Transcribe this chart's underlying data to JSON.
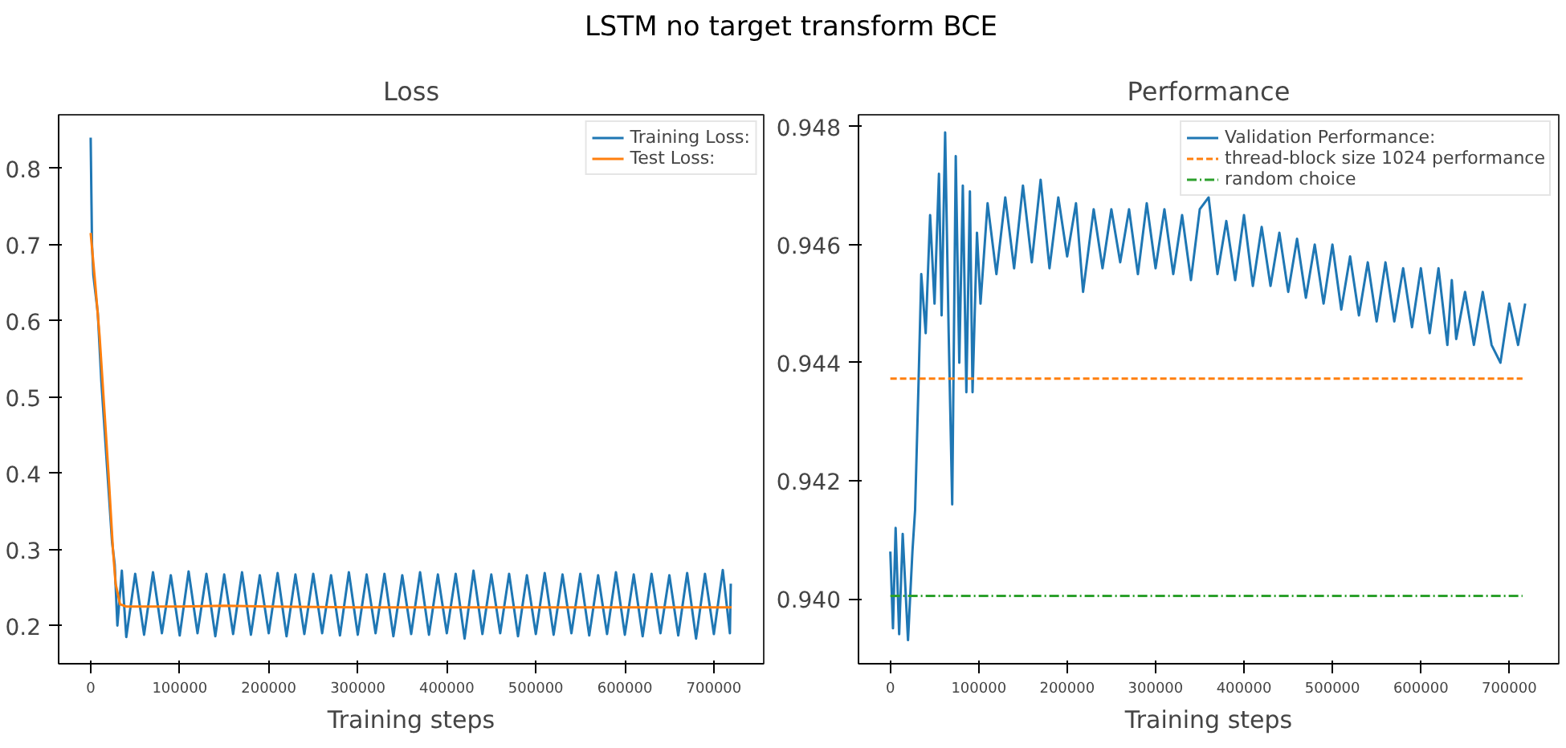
{
  "chart_data": [
    {
      "type": "line",
      "title": "Loss",
      "xlabel": "Training steps",
      "xlim": [
        -36000,
        756000
      ],
      "ylim": [
        0.15,
        0.87
      ],
      "xticks": [
        0,
        100000,
        200000,
        300000,
        400000,
        500000,
        600000,
        700000
      ],
      "yticks": [
        0.2,
        0.3,
        0.4,
        0.5,
        0.6,
        0.7,
        0.8
      ],
      "grid": false,
      "legend": "top right",
      "annotations": [
        "LSTM no target transform BCE"
      ],
      "series": [
        {
          "name": "Training Loss:",
          "color": "#1f77b4",
          "x": [
            0,
            1500,
            3000,
            8000,
            12000,
            16000,
            20000,
            24000,
            27000,
            30000,
            35000,
            40000,
            50000,
            60000,
            70000,
            80000,
            90000,
            100000,
            110000,
            120000,
            130000,
            140000,
            150000,
            160000,
            170000,
            180000,
            190000,
            200000,
            210000,
            220000,
            230000,
            240000,
            250000,
            260000,
            270000,
            280000,
            290000,
            300000,
            310000,
            320000,
            330000,
            340000,
            350000,
            360000,
            370000,
            380000,
            390000,
            400000,
            410000,
            420000,
            430000,
            440000,
            450000,
            460000,
            470000,
            480000,
            490000,
            500000,
            510000,
            520000,
            530000,
            540000,
            550000,
            560000,
            570000,
            580000,
            590000,
            600000,
            610000,
            620000,
            630000,
            640000,
            650000,
            660000,
            670000,
            680000,
            690000,
            700000,
            710000,
            718000,
            719000
          ],
          "values": [
            0.84,
            0.7,
            0.66,
            0.61,
            0.52,
            0.45,
            0.38,
            0.31,
            0.28,
            0.2,
            0.272,
            0.185,
            0.268,
            0.188,
            0.27,
            0.19,
            0.266,
            0.187,
            0.271,
            0.19,
            0.268,
            0.186,
            0.267,
            0.189,
            0.27,
            0.188,
            0.266,
            0.19,
            0.269,
            0.186,
            0.267,
            0.189,
            0.268,
            0.19,
            0.266,
            0.187,
            0.27,
            0.188,
            0.267,
            0.19,
            0.268,
            0.186,
            0.266,
            0.189,
            0.27,
            0.188,
            0.267,
            0.19,
            0.268,
            0.183,
            0.272,
            0.189,
            0.267,
            0.19,
            0.268,
            0.186,
            0.266,
            0.189,
            0.269,
            0.188,
            0.267,
            0.19,
            0.268,
            0.187,
            0.266,
            0.189,
            0.27,
            0.188,
            0.267,
            0.186,
            0.268,
            0.19,
            0.266,
            0.187,
            0.269,
            0.183,
            0.268,
            0.189,
            0.273,
            0.19,
            0.255
          ]
        },
        {
          "name": "Test Loss:",
          "color": "#ff7f0e",
          "x": [
            0,
            5000,
            10000,
            15000,
            20000,
            25000,
            28000,
            33000,
            40000,
            100000,
            150000,
            200000,
            300000,
            720000
          ],
          "values": [
            0.715,
            0.65,
            0.58,
            0.49,
            0.4,
            0.3,
            0.255,
            0.228,
            0.225,
            0.225,
            0.226,
            0.225,
            0.224,
            0.224
          ]
        }
      ]
    },
    {
      "type": "line",
      "title": "Performance",
      "xlabel": "Training steps",
      "xlim": [
        -36000,
        756000
      ],
      "ylim": [
        0.9389,
        0.9482
      ],
      "xticks": [
        0,
        100000,
        200000,
        300000,
        400000,
        500000,
        600000,
        700000
      ],
      "yticks": [
        {
          "value": 0.94,
          "label": "0.940"
        },
        0.942,
        0.944,
        0.946,
        0.948
      ],
      "grid": false,
      "legend": "top right",
      "series": [
        {
          "name": "Validation Performance:",
          "color": "#1f77b4",
          "x": [
            0,
            3000,
            6000,
            10000,
            14000,
            20000,
            25000,
            28000,
            32000,
            35000,
            40000,
            45000,
            50000,
            55000,
            58000,
            62000,
            66000,
            70000,
            74000,
            78000,
            82000,
            86000,
            90000,
            93000,
            98000,
            102000,
            110000,
            120000,
            130000,
            140000,
            150000,
            160000,
            170000,
            180000,
            190000,
            200000,
            210000,
            218000,
            230000,
            240000,
            250000,
            260000,
            270000,
            280000,
            290000,
            300000,
            310000,
            320000,
            330000,
            340000,
            350000,
            360000,
            370000,
            380000,
            390000,
            400000,
            410000,
            420000,
            430000,
            440000,
            450000,
            460000,
            470000,
            480000,
            490000,
            500000,
            510000,
            520000,
            530000,
            540000,
            550000,
            560000,
            570000,
            580000,
            590000,
            600000,
            610000,
            620000,
            630000,
            635000,
            640000,
            650000,
            660000,
            670000,
            680000,
            690000,
            700000,
            710000,
            718000
          ],
          "values": [
            0.9408,
            0.9395,
            0.9412,
            0.9394,
            0.9411,
            0.9393,
            0.9408,
            0.9415,
            0.9437,
            0.9455,
            0.9445,
            0.9465,
            0.945,
            0.9472,
            0.9448,
            0.9479,
            0.9445,
            0.9416,
            0.9475,
            0.944,
            0.947,
            0.9435,
            0.9469,
            0.9435,
            0.9462,
            0.945,
            0.9467,
            0.9455,
            0.9468,
            0.9456,
            0.947,
            0.9457,
            0.9471,
            0.9456,
            0.9468,
            0.9458,
            0.9467,
            0.9452,
            0.9466,
            0.9456,
            0.9466,
            0.9457,
            0.9466,
            0.9455,
            0.9467,
            0.9456,
            0.9466,
            0.9455,
            0.9465,
            0.9454,
            0.9466,
            0.9468,
            0.9455,
            0.9464,
            0.9454,
            0.9465,
            0.9453,
            0.9463,
            0.9453,
            0.9462,
            0.9452,
            0.9461,
            0.9451,
            0.946,
            0.945,
            0.946,
            0.9449,
            0.9458,
            0.9448,
            0.9457,
            0.9447,
            0.9457,
            0.9447,
            0.9456,
            0.9446,
            0.9456,
            0.9445,
            0.9456,
            0.9443,
            0.9454,
            0.9444,
            0.9452,
            0.9443,
            0.9452,
            0.9443,
            0.944,
            0.945,
            0.9443,
            0.945
          ]
        },
        {
          "name": "thread-block size 1024 performance",
          "color": "#ff7f0e",
          "line_style": "dashed",
          "x": [
            0,
            715000
          ],
          "values": [
            0.94373,
            0.94373
          ]
        },
        {
          "name": "random choice",
          "color": "#2ca02c",
          "line_style": "dashdot",
          "x": [
            0,
            715000
          ],
          "values": [
            0.94005,
            0.94005
          ]
        }
      ]
    }
  ]
}
